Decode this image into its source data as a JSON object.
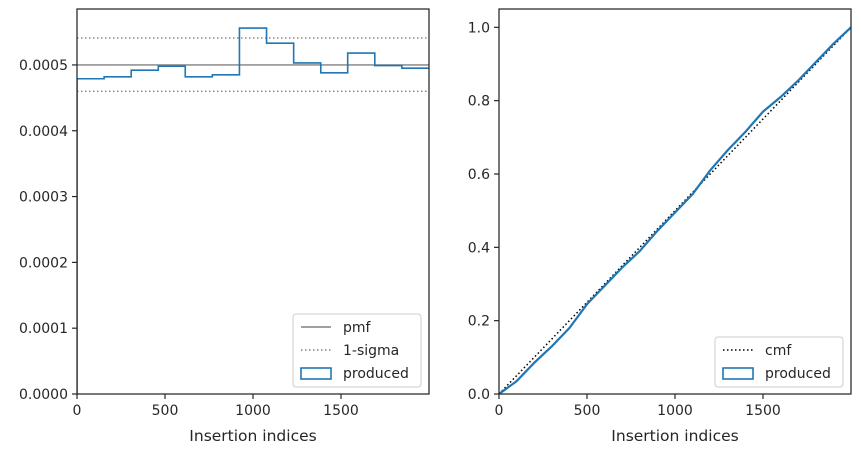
{
  "chart_data": [
    {
      "type": "histogram",
      "xlabel": "Insertion indices",
      "ylabel": "",
      "xlim": [
        0,
        2000
      ],
      "ylim": [
        0,
        0.000585
      ],
      "xticks": [
        0,
        500,
        1000,
        1500
      ],
      "xtick_labels": [
        "0",
        "500",
        "1000",
        "1500"
      ],
      "yticks": [
        0,
        0.0001,
        0.0002,
        0.0003,
        0.0004,
        0.0005
      ],
      "ytick_labels": [
        "0.0000",
        "0.0001",
        "0.0002",
        "0.0003",
        "0.0004",
        "0.0005"
      ],
      "grid": false,
      "legend_position": "lower right",
      "reference_lines": [
        {
          "name": "pmf",
          "y": 0.0005,
          "style": "solid",
          "color": "#808080"
        },
        {
          "name": "1-sigma",
          "y": 0.000541,
          "style": "dotted",
          "color": "#808080"
        },
        {
          "name": "1-sigma",
          "y": 0.00046,
          "style": "dotted",
          "color": "#808080"
        }
      ],
      "series": [
        {
          "name": "produced",
          "color": "#1f77b4",
          "bin_edges": [
            0,
            154,
            308,
            462,
            615,
            769,
            923,
            1077,
            1231,
            1385,
            1538,
            1692,
            1846,
            2000
          ],
          "values": [
            0.000479,
            0.000482,
            0.000492,
            0.000498,
            0.000482,
            0.000485,
            0.000556,
            0.000533,
            0.000503,
            0.000488,
            0.000518,
            0.000499,
            0.000495
          ]
        }
      ],
      "legend": [
        {
          "label": "pmf",
          "kind": "line-solid"
        },
        {
          "label": "1-sigma",
          "kind": "line-dotted"
        },
        {
          "label": "produced",
          "kind": "patch"
        }
      ]
    },
    {
      "type": "line",
      "xlabel": "Insertion indices",
      "ylabel": "",
      "xlim": [
        0,
        2000
      ],
      "ylim": [
        0,
        1.05
      ],
      "xticks": [
        0,
        500,
        1000,
        1500
      ],
      "xtick_labels": [
        "0",
        "500",
        "1000",
        "1500"
      ],
      "yticks": [
        0,
        0.2,
        0.4,
        0.6,
        0.8,
        1.0
      ],
      "ytick_labels": [
        "0.0",
        "0.2",
        "0.4",
        "0.6",
        "0.8",
        "1.0"
      ],
      "grid": false,
      "legend_position": "lower right",
      "series": [
        {
          "name": "cmf",
          "style": "dotted",
          "color": "#000000",
          "x": [
            0,
            2000
          ],
          "y": [
            0,
            1.0
          ]
        },
        {
          "name": "produced",
          "style": "solid",
          "color": "#1f77b4",
          "x": [
            0,
            100,
            200,
            300,
            400,
            500,
            600,
            700,
            800,
            900,
            1000,
            1100,
            1200,
            1300,
            1400,
            1500,
            1600,
            1700,
            1800,
            1900,
            2000
          ],
          "y": [
            0,
            0.035,
            0.085,
            0.13,
            0.18,
            0.245,
            0.295,
            0.345,
            0.39,
            0.445,
            0.495,
            0.545,
            0.61,
            0.665,
            0.715,
            0.77,
            0.81,
            0.855,
            0.905,
            0.955,
            1.0
          ]
        }
      ],
      "legend": [
        {
          "label": "cmf",
          "kind": "line-dotted"
        },
        {
          "label": "produced",
          "kind": "patch"
        }
      ]
    }
  ]
}
